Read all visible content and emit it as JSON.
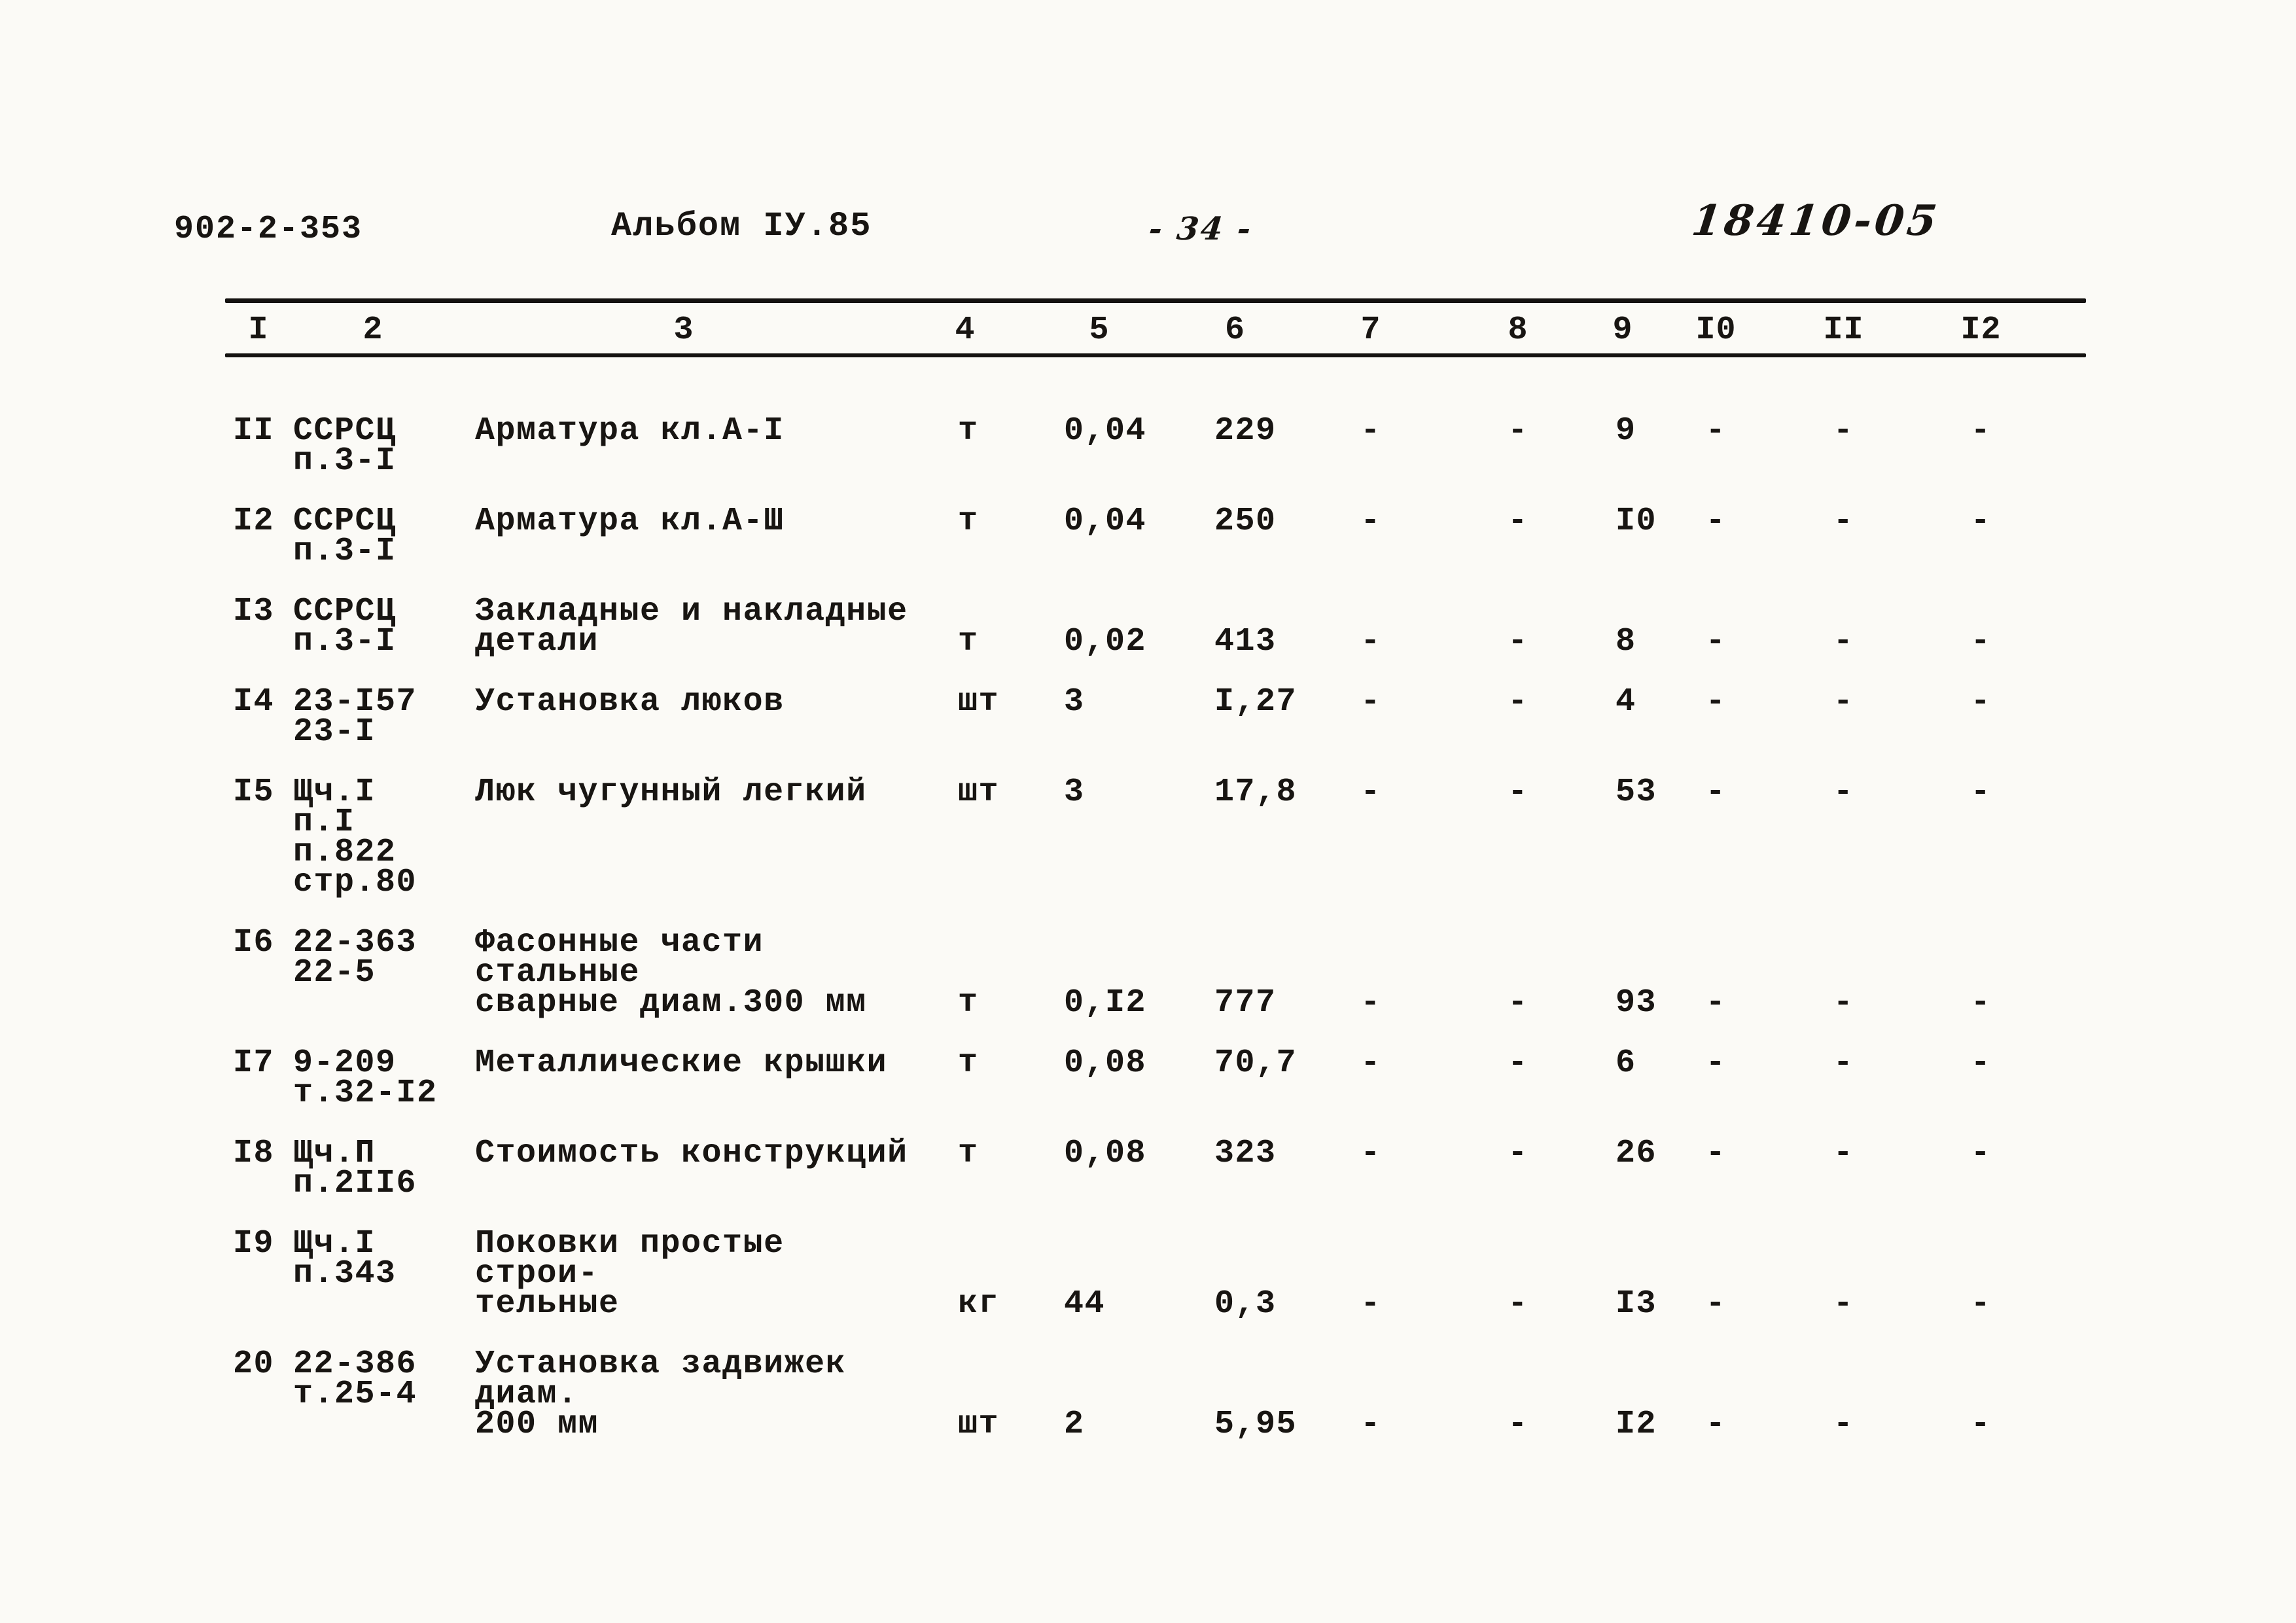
{
  "page": {
    "doc_number": "902-2-353",
    "album": "Альбом IУ.85",
    "page_number": "- 34 -",
    "stamp": "18410-05"
  },
  "table": {
    "column_headers": [
      "I",
      "2",
      "3",
      "4",
      "5",
      "6",
      "7",
      "8",
      "9",
      "I0",
      "II",
      "I2"
    ],
    "rows": [
      {
        "num": "II",
        "ref": "ССРСЦ\nп.3-I",
        "name": "Арматура кл.А-I",
        "unit": "т",
        "c5": "0,04",
        "c6": "229",
        "c7": "-",
        "c8": "-",
        "c9": "9",
        "c10": "-",
        "c11": "-",
        "c12": "-",
        "align": "top"
      },
      {
        "num": "I2",
        "ref": "ССРСЦ\nп.3-I",
        "name": "Арматура кл.А-Ш",
        "unit": "т",
        "c5": "0,04",
        "c6": "250",
        "c7": "-",
        "c8": "-",
        "c9": "I0",
        "c10": "-",
        "c11": "-",
        "c12": "-",
        "align": "top"
      },
      {
        "num": "I3",
        "ref": "ССРСЦ\nп.3-I",
        "name": "Закладные и накладные\nдетали",
        "unit": "т",
        "c5": "0,02",
        "c6": "413",
        "c7": "-",
        "c8": "-",
        "c9": "8",
        "c10": "-",
        "c11": "-",
        "c12": "-",
        "align": "bottom"
      },
      {
        "num": "I4",
        "ref": "23-I57\n23-I",
        "name": "Установка люков",
        "unit": "шт",
        "c5": "3",
        "c6": "I,27",
        "c7": "-",
        "c8": "-",
        "c9": "4",
        "c10": "-",
        "c11": "-",
        "c12": "-",
        "align": "top"
      },
      {
        "num": "I5",
        "ref": "Щч.I\nп.I\nп.822\nстр.80",
        "name": "Люк чугунный легкий",
        "unit": "шт",
        "c5": "3",
        "c6": "17,8",
        "c7": "-",
        "c8": "-",
        "c9": "53",
        "c10": "-",
        "c11": "-",
        "c12": "-",
        "align": "top"
      },
      {
        "num": "I6",
        "ref": "22-363\n22-5",
        "name": "Фасонные части стальные\nсварные диам.300 мм",
        "unit": "т",
        "c5": "0,I2",
        "c6": "777",
        "c7": "-",
        "c8": "-",
        "c9": "93",
        "c10": "-",
        "c11": "-",
        "c12": "-",
        "align": "bottom"
      },
      {
        "num": "I7",
        "ref": "9-209\nт.32-I2",
        "name": "Металлические крышки",
        "unit": "т",
        "c5": "0,08",
        "c6": "70,7",
        "c7": "-",
        "c8": "-",
        "c9": "6",
        "c10": "-",
        "c11": "-",
        "c12": "-",
        "align": "top"
      },
      {
        "num": "I8",
        "ref": "Щч.П\nп.2II6",
        "name": "Стоимость конструкций",
        "unit": "т",
        "c5": "0,08",
        "c6": "323",
        "c7": "-",
        "c8": "-",
        "c9": "26",
        "c10": "-",
        "c11": "-",
        "c12": "-",
        "align": "top"
      },
      {
        "num": "I9",
        "ref": "Щч.I\nп.343",
        "name": "Поковки простые строи-\nтельные",
        "unit": "кг",
        "c5": "44",
        "c6": "0,3",
        "c7": "-",
        "c8": "-",
        "c9": "I3",
        "c10": "-",
        "c11": "-",
        "c12": "-",
        "align": "bottom"
      },
      {
        "num": "20",
        "ref": "22-386\nт.25-4",
        "name": "Установка задвижек диам.\n200 мм",
        "unit": "шт",
        "c5": "2",
        "c6": "5,95",
        "c7": "-",
        "c8": "-",
        "c9": "I2",
        "c10": "-",
        "c11": "-",
        "c12": "-",
        "align": "bottom"
      }
    ]
  }
}
